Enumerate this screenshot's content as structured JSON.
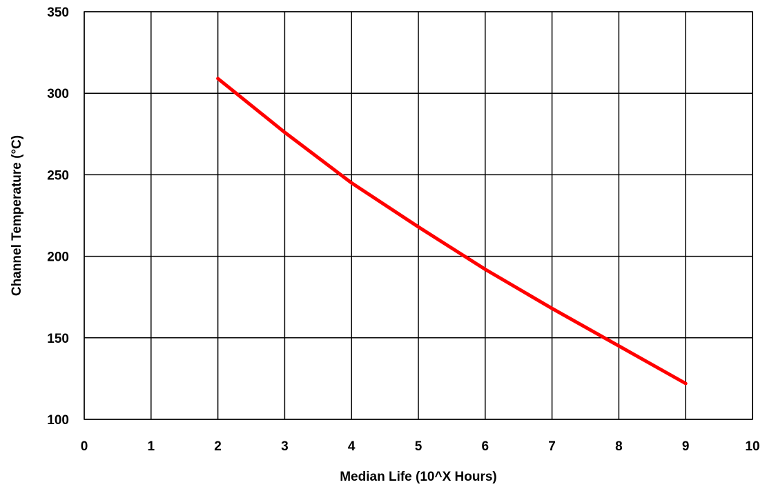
{
  "chart_data": {
    "type": "line",
    "title": "",
    "xlabel": "Median Life (10^X Hours)",
    "ylabel": "Channel Temperature  (°C)",
    "xlim": [
      0,
      10
    ],
    "ylim": [
      100,
      350
    ],
    "x_ticks": [
      0,
      1,
      2,
      3,
      4,
      5,
      6,
      7,
      8,
      9,
      10
    ],
    "y_ticks": [
      100,
      150,
      200,
      250,
      300,
      350
    ],
    "grid": true,
    "legend": "none",
    "series": [
      {
        "color": "#ff0000",
        "x": [
          2,
          3,
          4,
          5,
          6,
          7,
          8,
          9
        ],
        "y": [
          309,
          276,
          245,
          218,
          192,
          168,
          145,
          122
        ]
      }
    ]
  }
}
